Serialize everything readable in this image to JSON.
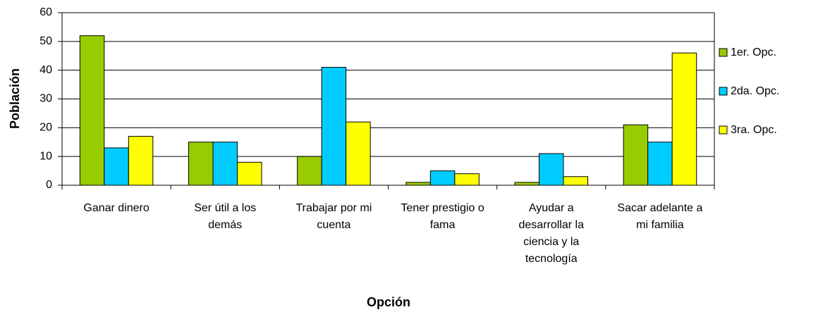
{
  "chart_data": {
    "type": "bar",
    "y_label": "Población",
    "x_label": "Opción",
    "categories": [
      "Ganar dinero",
      "Ser útil a los demás",
      "Trabajar por mi cuenta",
      "Tener prestigio o fama",
      "Ayudar a desarrollar la ciencia y la tecnología",
      "Sacar adelante a mi familia"
    ],
    "series": [
      {
        "name": "1er. Opc.",
        "color": "#99cc00",
        "values": [
          52,
          15,
          10,
          1,
          1,
          21
        ]
      },
      {
        "name": "2da. Opc.",
        "color": "#00ccff",
        "values": [
          13,
          15,
          41,
          5,
          11,
          15
        ]
      },
      {
        "name": "3ra. Opc.",
        "color": "#ffff00",
        "values": [
          17,
          8,
          22,
          4,
          3,
          46
        ]
      }
    ],
    "ylim": [
      0,
      60
    ],
    "yticks": [
      0,
      10,
      20,
      30,
      40,
      50,
      60
    ],
    "grid": true,
    "legend": "right"
  }
}
